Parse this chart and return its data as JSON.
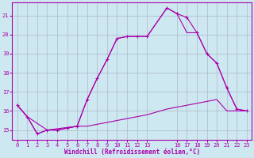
{
  "background_color": "#cde8f0",
  "grid_color": "#b0b8cc",
  "line_color": "#aa00aa",
  "xlim": [
    -0.5,
    23.5
  ],
  "ylim": [
    14.5,
    21.7
  ],
  "yticks": [
    15,
    16,
    17,
    18,
    19,
    20,
    21
  ],
  "xticks": [
    0,
    1,
    2,
    3,
    4,
    5,
    6,
    7,
    8,
    9,
    10,
    11,
    12,
    13,
    16,
    17,
    18,
    19,
    20,
    21,
    22,
    23
  ],
  "xlabel": "Windchill (Refroidissement éolien,°C)",
  "line1_x": [
    0,
    1,
    2,
    3,
    4,
    5,
    6,
    7,
    8,
    9,
    10,
    11,
    12,
    13,
    15,
    16,
    17,
    18,
    19,
    20,
    21,
    22,
    23
  ],
  "line1_y": [
    16.3,
    15.7,
    14.8,
    15.0,
    15.0,
    15.1,
    15.2,
    16.6,
    17.7,
    18.7,
    19.8,
    19.9,
    19.9,
    19.9,
    21.4,
    21.1,
    20.9,
    20.1,
    19.0,
    18.5,
    17.2,
    16.1,
    16.0
  ],
  "line2_x": [
    0,
    1,
    2,
    3,
    4,
    5,
    6,
    7,
    8,
    9,
    10,
    11,
    12,
    13,
    15,
    16,
    17,
    18,
    19,
    20,
    21,
    22,
    23
  ],
  "line2_y": [
    16.3,
    15.7,
    14.8,
    15.0,
    15.0,
    15.1,
    15.2,
    15.2,
    15.3,
    15.4,
    15.5,
    15.6,
    15.7,
    15.8,
    16.1,
    16.2,
    16.3,
    16.4,
    16.5,
    16.6,
    16.0,
    16.0,
    16.0
  ],
  "line3_x": [
    0,
    1,
    3,
    6,
    7,
    8,
    9,
    10,
    11,
    12,
    13,
    15,
    16,
    17,
    18,
    19,
    20,
    21,
    22,
    23
  ],
  "line3_y": [
    16.3,
    15.7,
    15.0,
    15.2,
    16.6,
    17.7,
    18.7,
    19.8,
    19.9,
    19.9,
    19.9,
    21.4,
    21.1,
    20.1,
    20.1,
    19.0,
    18.5,
    17.2,
    16.1,
    16.0
  ],
  "marker1_x": [
    0,
    1,
    2,
    3,
    4,
    5,
    6,
    7,
    8,
    9,
    10,
    11,
    12,
    13,
    15,
    16,
    17,
    18,
    19,
    20,
    21,
    22,
    23
  ],
  "marker1_y": [
    16.3,
    15.7,
    14.8,
    15.0,
    15.0,
    15.1,
    15.2,
    16.6,
    17.7,
    18.7,
    19.8,
    19.9,
    19.9,
    19.9,
    21.4,
    21.1,
    20.9,
    20.1,
    19.0,
    18.5,
    17.2,
    16.1,
    16.0
  ]
}
